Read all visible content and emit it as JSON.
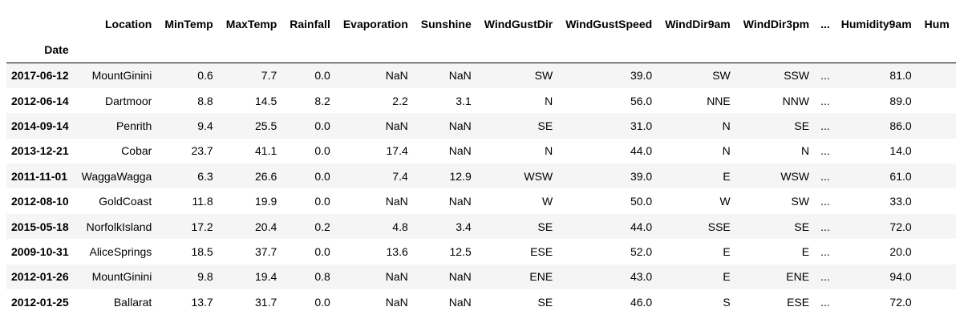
{
  "table": {
    "index_name": "Date",
    "columns": [
      "Location",
      "MinTemp",
      "MaxTemp",
      "Rainfall",
      "Evaporation",
      "Sunshine",
      "WindGustDir",
      "WindGustSpeed",
      "WindDir9am",
      "WindDir3pm",
      "...",
      "Humidity9am",
      "Hum"
    ],
    "rows": [
      {
        "date": "2017-06-12",
        "cells": [
          "MountGinini",
          "0.6",
          "7.7",
          "0.0",
          "NaN",
          "NaN",
          "SW",
          "39.0",
          "SW",
          "SSW",
          "...",
          "81.0",
          ""
        ]
      },
      {
        "date": "2012-06-14",
        "cells": [
          "Dartmoor",
          "8.8",
          "14.5",
          "8.2",
          "2.2",
          "3.1",
          "N",
          "56.0",
          "NNE",
          "NNW",
          "...",
          "89.0",
          ""
        ]
      },
      {
        "date": "2014-09-14",
        "cells": [
          "Penrith",
          "9.4",
          "25.5",
          "0.0",
          "NaN",
          "NaN",
          "SE",
          "31.0",
          "N",
          "SE",
          "...",
          "86.0",
          ""
        ]
      },
      {
        "date": "2013-12-21",
        "cells": [
          "Cobar",
          "23.7",
          "41.1",
          "0.0",
          "17.4",
          "NaN",
          "N",
          "44.0",
          "N",
          "N",
          "...",
          "14.0",
          ""
        ]
      },
      {
        "date": "2011-11-01",
        "cells": [
          "WaggaWagga",
          "6.3",
          "26.6",
          "0.0",
          "7.4",
          "12.9",
          "WSW",
          "39.0",
          "E",
          "WSW",
          "...",
          "61.0",
          ""
        ]
      },
      {
        "date": "2012-08-10",
        "cells": [
          "GoldCoast",
          "11.8",
          "19.9",
          "0.0",
          "NaN",
          "NaN",
          "W",
          "50.0",
          "W",
          "SW",
          "...",
          "33.0",
          ""
        ]
      },
      {
        "date": "2015-05-18",
        "cells": [
          "NorfolkIsland",
          "17.2",
          "20.4",
          "0.2",
          "4.8",
          "3.4",
          "SE",
          "44.0",
          "SSE",
          "SE",
          "...",
          "72.0",
          ""
        ]
      },
      {
        "date": "2009-10-31",
        "cells": [
          "AliceSprings",
          "18.5",
          "37.7",
          "0.0",
          "13.6",
          "12.5",
          "ESE",
          "52.0",
          "E",
          "E",
          "...",
          "20.0",
          ""
        ]
      },
      {
        "date": "2012-01-26",
        "cells": [
          "MountGinini",
          "9.8",
          "19.4",
          "0.8",
          "NaN",
          "NaN",
          "ENE",
          "43.0",
          "E",
          "ENE",
          "...",
          "94.0",
          ""
        ]
      },
      {
        "date": "2012-01-25",
        "cells": [
          "Ballarat",
          "13.7",
          "31.7",
          "0.0",
          "NaN",
          "NaN",
          "SE",
          "46.0",
          "S",
          "ESE",
          "...",
          "72.0",
          ""
        ]
      }
    ]
  }
}
